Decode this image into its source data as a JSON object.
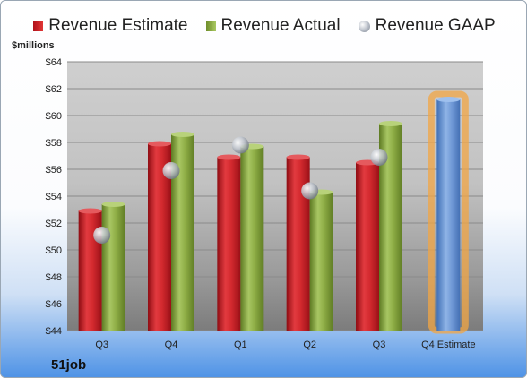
{
  "legend": {
    "estimate_label": "Revenue Estimate",
    "actual_label": "Revenue Actual",
    "gaap_label": "Revenue GAAP"
  },
  "unit_label": "$millions",
  "company": "51job",
  "colors": {
    "estimate": "#d42a2f",
    "actual": "#8fae46",
    "gaap": "#b6bcc6",
    "future_estimate": "#6f98d6",
    "future_glow": "#f2a544"
  },
  "chart_data": {
    "type": "bar",
    "categories": [
      "Q3",
      "Q4",
      "Q1",
      "Q2",
      "Q3",
      "Q4 Estimate"
    ],
    "ylabel": "$millions",
    "ylim": [
      44,
      64
    ],
    "yticks": [
      "$64",
      "$62",
      "$60",
      "$58",
      "$56",
      "$54",
      "$52",
      "$50",
      "$48",
      "$46",
      "$44"
    ],
    "grid": true,
    "legend_position": "top",
    "series": [
      {
        "name": "Revenue Estimate",
        "type": "bar",
        "values": [
          52.9,
          57.9,
          56.9,
          56.9,
          56.5,
          61.2
        ]
      },
      {
        "name": "Revenue Actual",
        "type": "bar",
        "values": [
          53.4,
          58.6,
          57.7,
          54.3,
          59.4,
          null
        ]
      },
      {
        "name": "Revenue GAAP",
        "type": "scatter",
        "values": [
          51.1,
          55.9,
          57.8,
          54.4,
          56.9,
          null
        ]
      }
    ]
  }
}
